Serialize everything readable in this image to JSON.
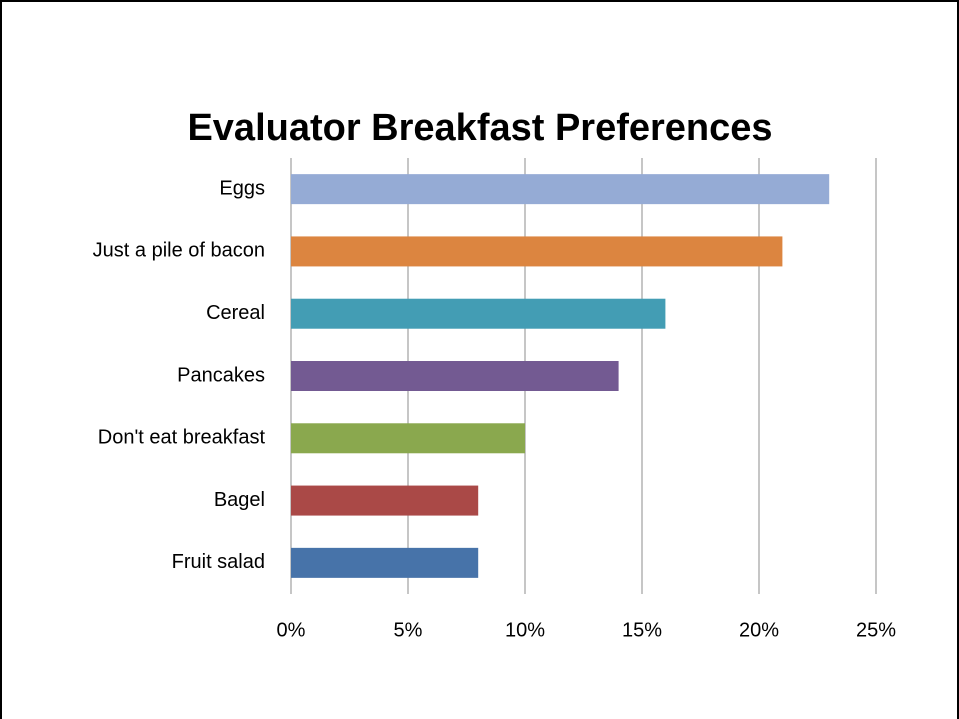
{
  "chart_data": {
    "type": "bar",
    "orientation": "horizontal",
    "title": "Evaluator Breakfast Preferences",
    "categories": [
      "Eggs",
      "Just a pile of bacon",
      "Cereal",
      "Pancakes",
      "Don't eat breakfast",
      "Bagel",
      "Fruit salad"
    ],
    "values": [
      23,
      21,
      16,
      14,
      10,
      8,
      8
    ],
    "colors": [
      "#95abd5",
      "#dc8540",
      "#439db4",
      "#735a92",
      "#8aa84e",
      "#aa4947",
      "#4773a9"
    ],
    "xlim": [
      0,
      25
    ],
    "xticks": [
      {
        "value": 0,
        "label": "0%"
      },
      {
        "value": 5,
        "label": "5%"
      },
      {
        "value": 10,
        "label": "10%"
      },
      {
        "value": 15,
        "label": "15%"
      },
      {
        "value": 20,
        "label": "20%"
      },
      {
        "value": 25,
        "label": "25%"
      }
    ],
    "grid": true
  }
}
